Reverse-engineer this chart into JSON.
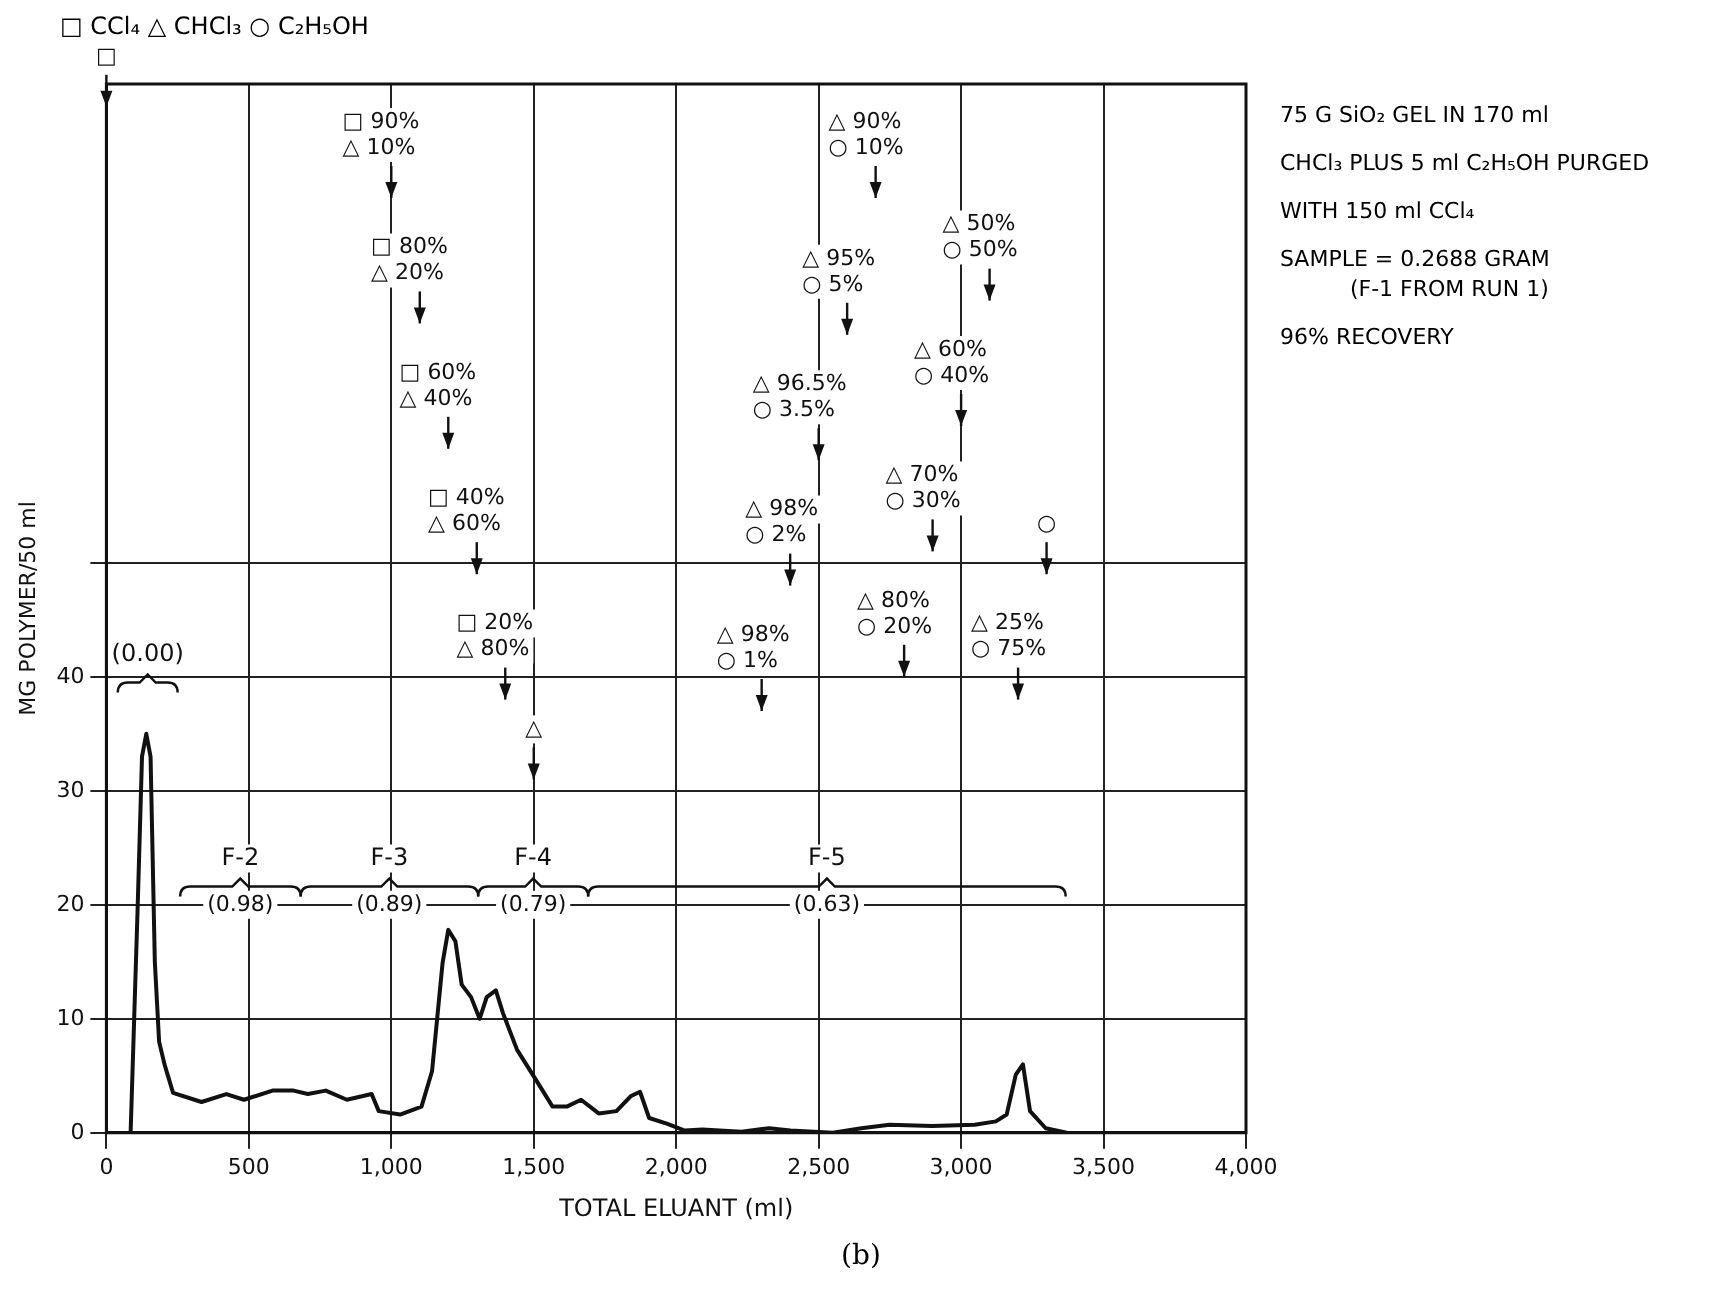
{
  "chart_data": {
    "type": "line",
    "xlabel": "TOTAL ELUANT (ml)",
    "ylabel": "MG POLYMER/50 ml",
    "series": [
      {
        "color": "#111111",
        "x": [
          85,
          110,
          125,
          140,
          155,
          170,
          185,
          204,
          234,
          334,
          421,
          483,
          583,
          657,
          707,
          770,
          844,
          931,
          956,
          1031,
          1106,
          1143,
          1180,
          1200,
          1225,
          1247,
          1280,
          1310,
          1335,
          1367,
          1392,
          1441,
          1504,
          1566,
          1616,
          1666,
          1728,
          1790,
          1840,
          1873,
          1905,
          1967,
          2030,
          2092,
          2229,
          2326,
          2401,
          2550,
          2650,
          2749,
          2898,
          3048,
          3122,
          3160,
          3192,
          3217,
          3242,
          3297,
          3371
        ],
        "values": [
          0,
          20,
          33,
          35,
          33,
          15,
          8,
          6,
          3.5,
          2.7,
          3.4,
          2.9,
          3.7,
          3.7,
          3.4,
          3.7,
          2.9,
          3.4,
          1.9,
          1.6,
          2.3,
          5.4,
          14.9,
          17.8,
          16.8,
          13,
          11.9,
          10,
          11.9,
          12.5,
          10.5,
          7.3,
          4.8,
          2.3,
          2.3,
          2.9,
          1.7,
          1.9,
          3.2,
          3.6,
          1.3,
          0.8,
          0.2,
          0.3,
          0.1,
          0.4,
          0.2,
          0,
          0.4,
          0.7,
          0.6,
          0.7,
          1,
          1.6,
          5.1,
          6,
          1.9,
          0.4,
          0
        ]
      }
    ],
    "xlim": [
      0,
      4000
    ],
    "xticks": [
      0,
      500,
      {
        "value": 1000,
        "label": "1,000"
      },
      {
        "value": 1500,
        "label": "1,500"
      },
      {
        "value": 2000,
        "label": "2,000"
      },
      {
        "value": 2500,
        "label": "2,500"
      },
      {
        "value": 3000,
        "label": "3,000"
      },
      {
        "value": 3500,
        "label": "3,500"
      },
      {
        "value": 4000,
        "label": "4,000"
      }
    ],
    "ylim": [
      0,
      92
    ],
    "yticks": [
      0,
      10,
      20,
      30,
      40,
      {
        "value": 50,
        "label": null
      }
    ],
    "grid": true,
    "legend": false,
    "marker": "none",
    "line_style": "solid",
    "annotations": [
      "□ CCl₄   △ CHCl₃   ○ C₂H₅OH",
      "75 G SiO₂ GEL IN 170 ml",
      "CHCl₃ PLUS 5 ml C₂H₅OH PURGED",
      "WITH 150 ml CCl₄",
      "SAMPLE = 0.2688 GRAM\n          (F-1 FROM RUN 1)",
      "96% RECOVERY",
      "(0.00)",
      "F-2",
      "(0.98)",
      "F-3",
      "(0.89)",
      "F-4",
      "(0.79)",
      "F-5",
      "(0.63)",
      "□",
      "□ 90%\n△ 10%",
      "□ 80%\n△ 20%",
      "□ 60%\n△ 40%",
      "□ 40%\n△ 60%",
      "□ 20%\n△ 80%",
      "△",
      "△ 98%\n○ 1%",
      "△ 98%\n○ 2%",
      "△ 96.5%\n○ 3.5%",
      "△ 95%\n○ 5%",
      "△ 90%\n○ 10%",
      "△ 80%\n○ 20%",
      "△ 70%\n○ 30%",
      "△ 60%\n○ 40%",
      "△ 50%\n○ 50%",
      "△ 25%\n○ 75%",
      "○",
      "(b)"
    ]
  }
}
